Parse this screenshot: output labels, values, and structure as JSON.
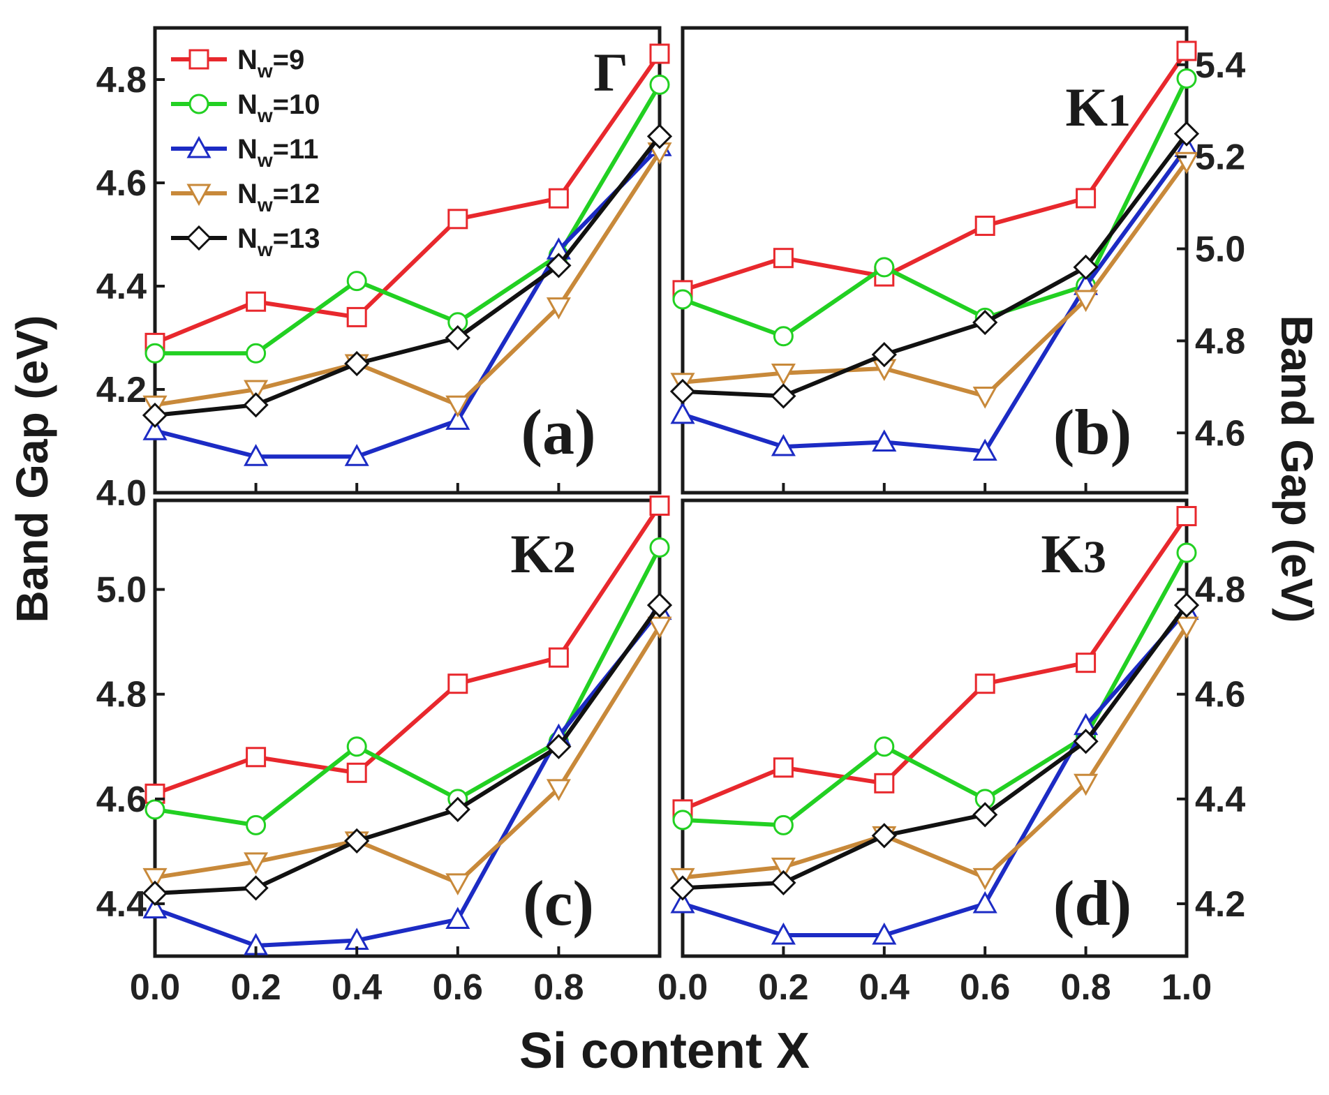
{
  "chart_data": {
    "type": "line",
    "x_label": "Si content X",
    "y_label_left": "Band Gap (eV)",
    "y_label_right": "Band Gap (eV)",
    "x": [
      0.0,
      0.2,
      0.4,
      0.6,
      0.8,
      1.0
    ],
    "legend": [
      {
        "name": "N",
        "sub": "w",
        "suffix": "=9",
        "color": "#e8282d",
        "marker": "square"
      },
      {
        "name": "N",
        "sub": "w",
        "suffix": "=10",
        "color": "#22d022",
        "marker": "circle"
      },
      {
        "name": "N",
        "sub": "w",
        "suffix": "=11",
        "color": "#1c2bc4",
        "marker": "triangle-up"
      },
      {
        "name": "N",
        "sub": "w",
        "suffix": "=12",
        "color": "#c8893a",
        "marker": "triangle-down"
      },
      {
        "name": "N",
        "sub": "w",
        "suffix": "=13",
        "color": "#111111",
        "marker": "diamond"
      }
    ],
    "panels": [
      {
        "id": "a",
        "symbol": "Γ",
        "tag": "(a)",
        "ylim": [
          4.0,
          4.9
        ],
        "yticks": [
          "4.0",
          "4.2",
          "4.4",
          "4.6",
          "4.8"
        ],
        "yaxis_side": "left",
        "series": [
          {
            "name": "Nw=9",
            "values": [
              4.29,
              4.37,
              4.34,
              4.53,
              4.57,
              4.85
            ]
          },
          {
            "name": "Nw=10",
            "values": [
              4.27,
              4.27,
              4.41,
              4.33,
              4.46,
              4.79
            ]
          },
          {
            "name": "Nw=11",
            "values": [
              4.12,
              4.07,
              4.07,
              4.14,
              4.47,
              4.67
            ]
          },
          {
            "name": "Nw=12",
            "values": [
              4.17,
              4.2,
              4.25,
              4.17,
              4.36,
              4.66
            ]
          },
          {
            "name": "Nw=13",
            "values": [
              4.15,
              4.17,
              4.25,
              4.3,
              4.44,
              4.69
            ]
          }
        ]
      },
      {
        "id": "b",
        "symbol": "K",
        "symbol_sub": "1",
        "tag": "(b)",
        "ylim": [
          4.47,
          5.48
        ],
        "yticks": [
          "4.6",
          "4.8",
          "5.0",
          "5.2",
          "5.4"
        ],
        "yaxis_side": "right",
        "series": [
          {
            "name": "Nw=9",
            "values": [
              4.91,
              4.98,
              4.94,
              5.05,
              5.11,
              5.43
            ]
          },
          {
            "name": "Nw=10",
            "values": [
              4.89,
              4.81,
              4.96,
              4.85,
              4.92,
              5.37
            ]
          },
          {
            "name": "Nw=11",
            "values": [
              4.64,
              4.57,
              4.58,
              4.56,
              4.92,
              5.22
            ]
          },
          {
            "name": "Nw=12",
            "values": [
              4.71,
              4.73,
              4.74,
              4.68,
              4.89,
              5.19
            ]
          },
          {
            "name": "Nw=13",
            "values": [
              4.69,
              4.68,
              4.77,
              4.84,
              4.96,
              5.25
            ]
          }
        ]
      },
      {
        "id": "c",
        "symbol": "K",
        "symbol_sub": "2",
        "tag": "(c)",
        "ylim": [
          4.3,
          5.17
        ],
        "yticks": [
          "4.4",
          "4.6",
          "4.8",
          "5.0"
        ],
        "yaxis_side": "left",
        "series": [
          {
            "name": "Nw=9",
            "values": [
              4.61,
              4.68,
              4.65,
              4.82,
              4.87,
              5.16
            ]
          },
          {
            "name": "Nw=10",
            "values": [
              4.58,
              4.55,
              4.7,
              4.6,
              4.71,
              5.08
            ]
          },
          {
            "name": "Nw=11",
            "values": [
              4.39,
              4.32,
              4.33,
              4.37,
              4.72,
              4.96
            ]
          },
          {
            "name": "Nw=12",
            "values": [
              4.45,
              4.48,
              4.52,
              4.44,
              4.62,
              4.93
            ]
          },
          {
            "name": "Nw=13",
            "values": [
              4.42,
              4.43,
              4.52,
              4.58,
              4.7,
              4.97
            ]
          }
        ]
      },
      {
        "id": "d",
        "symbol": "K",
        "symbol_sub": "3",
        "tag": "(d)",
        "ylim": [
          4.1,
          4.97
        ],
        "yticks": [
          "4.2",
          "4.4",
          "4.6",
          "4.8"
        ],
        "yaxis_side": "right",
        "series": [
          {
            "name": "Nw=9",
            "values": [
              4.38,
              4.46,
              4.43,
              4.62,
              4.66,
              4.94
            ]
          },
          {
            "name": "Nw=10",
            "values": [
              4.36,
              4.35,
              4.5,
              4.4,
              4.52,
              4.87
            ]
          },
          {
            "name": "Nw=11",
            "values": [
              4.2,
              4.14,
              4.14,
              4.2,
              4.54,
              4.76
            ]
          },
          {
            "name": "Nw=12",
            "values": [
              4.25,
              4.27,
              4.33,
              4.25,
              4.43,
              4.73
            ]
          },
          {
            "name": "Nw=13",
            "values": [
              4.23,
              4.24,
              4.33,
              4.37,
              4.51,
              4.77
            ]
          }
        ]
      }
    ],
    "xticks_left_panels": [
      "0.0",
      "0.2",
      "0.4",
      "0.6",
      "0.8"
    ],
    "xticks_right_panels": [
      "0.0",
      "0.2",
      "0.4",
      "0.6",
      "0.8",
      "1.0"
    ],
    "xlim": [
      0.0,
      1.0
    ]
  }
}
